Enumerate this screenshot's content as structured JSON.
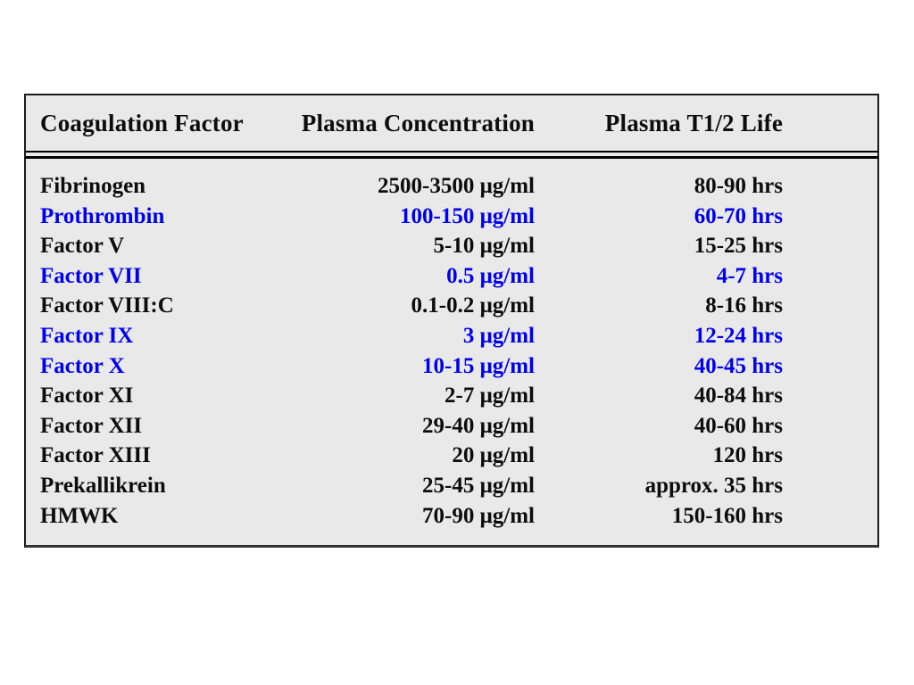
{
  "table": {
    "columns": [
      "Coagulation Factor",
      "Plasma Concentration",
      "Plasma T1/2 Life"
    ],
    "rows": [
      {
        "factor": "Fibrinogen",
        "concentration": "2500-3500 μg/ml",
        "half_life": "80-90 hrs",
        "highlighted": false
      },
      {
        "factor": "Prothrombin",
        "concentration": "100-150 μg/ml",
        "half_life": "60-70 hrs",
        "highlighted": true
      },
      {
        "factor": "Factor V",
        "concentration": "5-10 μg/ml",
        "half_life": "15-25 hrs",
        "highlighted": false
      },
      {
        "factor": "Factor VII",
        "concentration": "0.5 μg/ml",
        "half_life": "4-7 hrs",
        "highlighted": true
      },
      {
        "factor": "Factor VIII:C",
        "concentration": "0.1-0.2 μg/ml",
        "half_life": "8-16 hrs",
        "highlighted": false
      },
      {
        "factor": "Factor IX",
        "concentration": "3 μg/ml",
        "half_life": "12-24 hrs",
        "highlighted": true
      },
      {
        "factor": "Factor X",
        "concentration": "10-15 μg/ml",
        "half_life": "40-45 hrs",
        "highlighted": true
      },
      {
        "factor": "Factor XI",
        "concentration": "2-7 μg/ml",
        "half_life": "40-84 hrs",
        "highlighted": false
      },
      {
        "factor": "Factor XII",
        "concentration": "29-40 μg/ml",
        "half_life": "40-60 hrs",
        "highlighted": false
      },
      {
        "factor": "Factor XIII",
        "concentration": "20 μg/ml",
        "half_life": "120 hrs",
        "highlighted": false
      },
      {
        "factor": "Prekallikrein",
        "concentration": "25-45 μg/ml",
        "half_life": "approx. 35 hrs",
        "highlighted": false
      },
      {
        "factor": "HMWK",
        "concentration": "70-90 μg/ml",
        "half_life": "150-160 hrs",
        "highlighted": false
      }
    ],
    "colors": {
      "highlight_text": "#0000ee",
      "normal_text": "#0d0d0d",
      "table_background": "#e9e9e9",
      "table_border": "#1b1b1b",
      "page_background": "#ffffff"
    }
  }
}
